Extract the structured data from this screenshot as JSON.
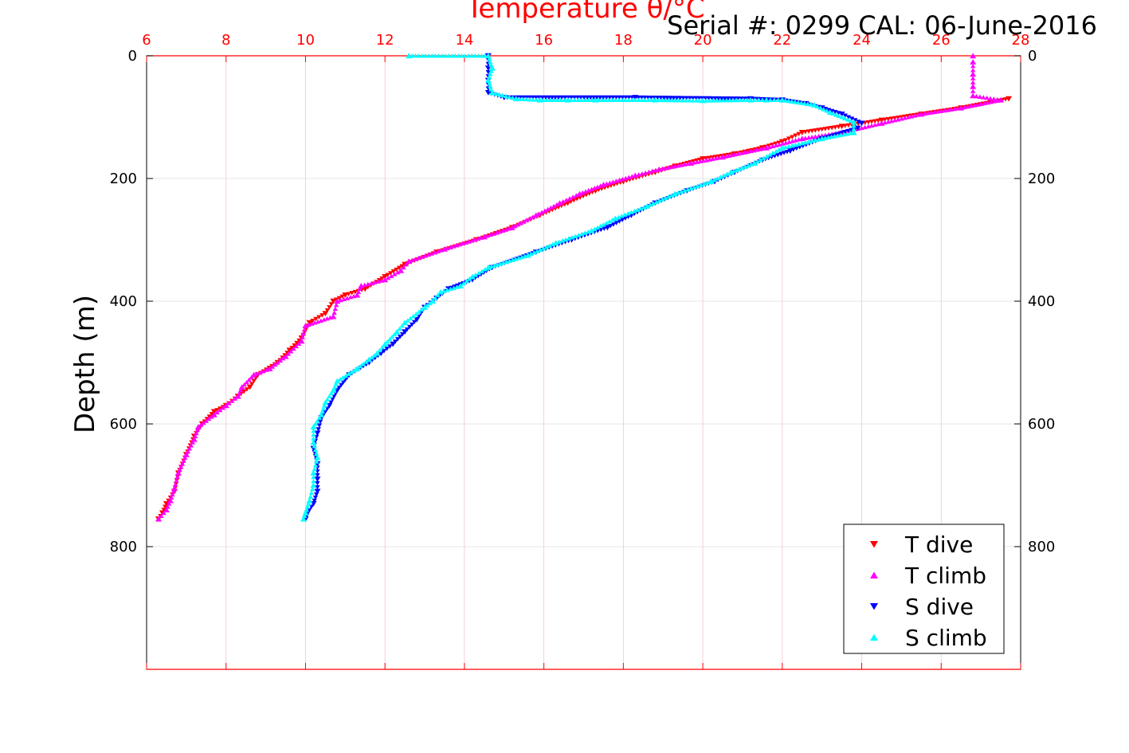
{
  "header": {
    "serial_text": "Serial #: 0299 CAL: 06-June-2016"
  },
  "chart_data": {
    "type": "scatter",
    "title": "",
    "xlabel": "Temperature θ/°C",
    "ylabel": "Depth (m)",
    "xlim": [
      6,
      28
    ],
    "ylim": [
      0,
      1000
    ],
    "y_reversed": true,
    "x_ticks": [
      6,
      8,
      10,
      12,
      14,
      16,
      18,
      20,
      22,
      24,
      26,
      28
    ],
    "y_ticks": [
      0,
      200,
      400,
      600,
      800
    ],
    "grid": true,
    "legend_position": "bottom-right",
    "colors": {
      "x_axis": "#ff0000",
      "grid": "#e0e0e0"
    },
    "series": [
      {
        "name": "T dive",
        "color": "#ff0000",
        "marker": "triangle-down",
        "points": [
          [
            27.7,
            70
          ],
          [
            26.5,
            85
          ],
          [
            25.5,
            95
          ],
          [
            24.5,
            105
          ],
          [
            23.5,
            115
          ],
          [
            22.5,
            125
          ],
          [
            22,
            140
          ],
          [
            21.5,
            150
          ],
          [
            20.8,
            160
          ],
          [
            20,
            168
          ],
          [
            19.3,
            180
          ],
          [
            18.8,
            190
          ],
          [
            18,
            205
          ],
          [
            17.3,
            220
          ],
          [
            16.6,
            240
          ],
          [
            15.9,
            260
          ],
          [
            15.2,
            280
          ],
          [
            14.3,
            300
          ],
          [
            13.3,
            320
          ],
          [
            12.5,
            340
          ],
          [
            12,
            360
          ],
          [
            11.5,
            380
          ],
          [
            11,
            390
          ],
          [
            10.7,
            400
          ],
          [
            10.5,
            420
          ],
          [
            10.1,
            435
          ],
          [
            9.9,
            460
          ],
          [
            9.6,
            480
          ],
          [
            9.3,
            500
          ],
          [
            8.8,
            520
          ],
          [
            8.6,
            540
          ],
          [
            8.3,
            555
          ],
          [
            8,
            570
          ],
          [
            7.7,
            580
          ],
          [
            7.4,
            600
          ],
          [
            7.2,
            620
          ],
          [
            7,
            650
          ],
          [
            6.8,
            680
          ],
          [
            6.7,
            710
          ],
          [
            6.5,
            730
          ],
          [
            6.4,
            745
          ],
          [
            6.3,
            755
          ]
        ]
      },
      {
        "name": "T climb",
        "color": "#ff00ff",
        "marker": "triangle-up",
        "points": [
          [
            26.8,
            0
          ],
          [
            26.8,
            10
          ],
          [
            26.8,
            30
          ],
          [
            26.8,
            50
          ],
          [
            26.8,
            65
          ],
          [
            27.5,
            72
          ],
          [
            26.5,
            85
          ],
          [
            25.5,
            95
          ],
          [
            24.5,
            110
          ],
          [
            23.5,
            125
          ],
          [
            22.5,
            135
          ],
          [
            21.6,
            150
          ],
          [
            20.5,
            165
          ],
          [
            19.7,
            175
          ],
          [
            18.9,
            185
          ],
          [
            18.3,
            195
          ],
          [
            17.5,
            210
          ],
          [
            16.9,
            225
          ],
          [
            16.4,
            240
          ],
          [
            15.8,
            260
          ],
          [
            15.2,
            280
          ],
          [
            14.5,
            295
          ],
          [
            13.5,
            315
          ],
          [
            12.6,
            335
          ],
          [
            12.4,
            350
          ],
          [
            12,
            365
          ],
          [
            11.4,
            375
          ],
          [
            11.3,
            390
          ],
          [
            10.8,
            400
          ],
          [
            10.7,
            425
          ],
          [
            10,
            440
          ],
          [
            9.9,
            465
          ],
          [
            9.5,
            490
          ],
          [
            9.1,
            510
          ],
          [
            8.7,
            520
          ],
          [
            8.4,
            540
          ],
          [
            8.3,
            555
          ],
          [
            8,
            570
          ],
          [
            7.7,
            585
          ],
          [
            7.3,
            605
          ],
          [
            7.2,
            625
          ],
          [
            7,
            650
          ],
          [
            6.8,
            680
          ],
          [
            6.7,
            705
          ],
          [
            6.6,
            725
          ],
          [
            6.5,
            740
          ],
          [
            6.3,
            755
          ]
        ]
      },
      {
        "name": "S dive",
        "color": "#0000ff",
        "marker": "triangle-down",
        "points": [
          [
            14.6,
            0
          ],
          [
            14.6,
            20
          ],
          [
            14.6,
            40
          ],
          [
            14.6,
            60
          ],
          [
            15,
            68
          ],
          [
            18.3,
            68
          ],
          [
            21.2,
            70
          ],
          [
            22,
            72
          ],
          [
            22.6,
            78
          ],
          [
            23,
            85
          ],
          [
            23.5,
            95
          ],
          [
            24,
            110
          ],
          [
            23.9,
            118
          ],
          [
            23,
            135
          ],
          [
            22.2,
            155
          ],
          [
            21.5,
            170
          ],
          [
            20.8,
            190
          ],
          [
            20.3,
            205
          ],
          [
            19.6,
            220
          ],
          [
            18.8,
            240
          ],
          [
            18.2,
            260
          ],
          [
            17.6,
            280
          ],
          [
            16.7,
            300
          ],
          [
            15.8,
            320
          ],
          [
            14.7,
            345
          ],
          [
            14.2,
            365
          ],
          [
            13.6,
            380
          ],
          [
            13.3,
            395
          ],
          [
            13,
            410
          ],
          [
            12.8,
            430
          ],
          [
            12.5,
            450
          ],
          [
            12.2,
            470
          ],
          [
            11.9,
            485
          ],
          [
            11.6,
            500
          ],
          [
            11.1,
            520
          ],
          [
            10.8,
            545
          ],
          [
            10.6,
            570
          ],
          [
            10.4,
            590
          ],
          [
            10.3,
            615
          ],
          [
            10.2,
            640
          ],
          [
            10.3,
            665
          ],
          [
            10.3,
            690
          ],
          [
            10.3,
            710
          ],
          [
            10.2,
            730
          ],
          [
            10.05,
            745
          ],
          [
            10,
            755
          ]
        ]
      },
      {
        "name": "S climb",
        "color": "#00ffff",
        "marker": "triangle-up",
        "points": [
          [
            12.6,
            0
          ],
          [
            14.6,
            0
          ],
          [
            14.7,
            20
          ],
          [
            14.6,
            40
          ],
          [
            14.7,
            60
          ],
          [
            15.3,
            70
          ],
          [
            15.9,
            72
          ],
          [
            16.6,
            72
          ],
          [
            17.3,
            72
          ],
          [
            18.8,
            72
          ],
          [
            20,
            73
          ],
          [
            21.2,
            72
          ],
          [
            21.6,
            72
          ],
          [
            22,
            72
          ],
          [
            22.8,
            80
          ],
          [
            23.2,
            92
          ],
          [
            23.8,
            108
          ],
          [
            23.8,
            125
          ],
          [
            23,
            135
          ],
          [
            22,
            150
          ],
          [
            21.3,
            175
          ],
          [
            20.7,
            190
          ],
          [
            20.2,
            205
          ],
          [
            19.3,
            225
          ],
          [
            18.6,
            245
          ],
          [
            17.8,
            265
          ],
          [
            17.2,
            285
          ],
          [
            16.3,
            305
          ],
          [
            15.6,
            325
          ],
          [
            14.6,
            345
          ],
          [
            14.2,
            360
          ],
          [
            13.9,
            375
          ],
          [
            13.4,
            385
          ],
          [
            13.2,
            400
          ],
          [
            13,
            410
          ],
          [
            12.5,
            435
          ],
          [
            12.3,
            450
          ],
          [
            12,
            470
          ],
          [
            11.8,
            485
          ],
          [
            11.6,
            495
          ],
          [
            11.3,
            510
          ],
          [
            10.8,
            530
          ],
          [
            10.7,
            545
          ],
          [
            10.5,
            565
          ],
          [
            10.4,
            585
          ],
          [
            10.2,
            605
          ],
          [
            10.2,
            630
          ],
          [
            10.3,
            655
          ],
          [
            10.2,
            680
          ],
          [
            10.2,
            700
          ],
          [
            10.1,
            725
          ],
          [
            10,
            745
          ],
          [
            9.95,
            755
          ]
        ]
      }
    ]
  }
}
